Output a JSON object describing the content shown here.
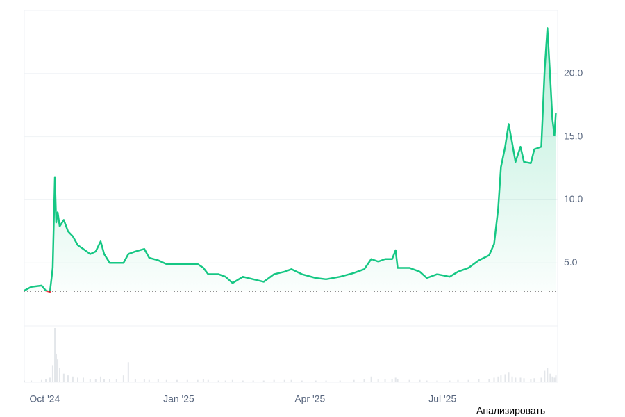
{
  "chart_data": {
    "type": "line",
    "x": [
      0,
      4.8,
      11.9,
      14.8,
      17.6,
      19.5,
      21,
      21.9,
      22.9,
      24.3,
      27.1,
      30,
      33.3,
      36.7,
      40.5,
      45.2,
      49,
      52.4,
      54.8,
      58.6,
      63.3,
      68.1,
      71.4,
      76.2,
      82.4,
      85.7,
      91.9,
      97.6,
      104.8,
      111.9,
      119,
      122.9,
      126.2,
      133.3,
      138.1,
      142.9,
      150,
      157.1,
      164.3,
      171.4,
      178.6,
      183.3,
      190.5,
      200,
      207.1,
      216.7,
      226.2,
      233.3,
      238.1,
      242.9,
      247.6,
      252.4,
      254.8,
      256.2,
      264.3,
      271.4,
      276.2,
      283.3,
      291.9,
      297.6,
      304.8,
      311.9,
      319,
      322.4,
      325.2,
      327.1,
      330,
      332.4,
      334.8,
      337.1,
      340.5,
      342.9,
      347.6,
      350,
      354.8,
      357.1,
      359,
      360.9,
      362.4,
      363.8,
      364.8
    ],
    "series": [
      {
        "color": "#16c784",
        "below_color": "#ea3943",
        "values": [
          2.8,
          3.1,
          3.2,
          2.8,
          2.7,
          4.6,
          11.8,
          8.2,
          9.0,
          7.9,
          8.4,
          7.5,
          7.1,
          6.4,
          6.1,
          5.7,
          5.9,
          6.7,
          5.7,
          5.0,
          5.0,
          5.0,
          5.7,
          5.9,
          6.1,
          5.4,
          5.2,
          4.9,
          4.9,
          4.9,
          4.9,
          4.6,
          4.1,
          4.1,
          3.9,
          3.4,
          3.9,
          3.7,
          3.5,
          4.1,
          4.3,
          4.5,
          4.1,
          3.8,
          3.7,
          3.9,
          4.2,
          4.5,
          5.3,
          5.1,
          5.3,
          5.3,
          6.0,
          4.6,
          4.6,
          4.3,
          3.8,
          4.1,
          3.9,
          4.3,
          4.6,
          5.2,
          5.6,
          6.5,
          9.3,
          12.6,
          14.2,
          16.0,
          14.5,
          13.0,
          14.2,
          13.0,
          12.9,
          14.0,
          14.2,
          20.3,
          23.6,
          19.7,
          16.4,
          15.1,
          16.9
        ]
      }
    ],
    "volume": {
      "color": "#e3e6ea",
      "values": [
        3,
        3,
        4,
        5,
        8,
        30,
        95,
        50,
        40,
        25,
        15,
        12,
        10,
        8,
        8,
        6,
        6,
        10,
        6,
        5,
        5,
        12,
        35,
        6,
        5,
        4,
        5,
        4,
        4,
        4,
        4,
        5,
        4,
        3,
        3,
        4,
        3,
        3,
        3,
        4,
        4,
        4,
        3,
        3,
        3,
        3,
        4,
        5,
        10,
        6,
        6,
        6,
        8,
        5,
        4,
        4,
        3,
        3,
        3,
        4,
        4,
        5,
        6,
        8,
        10,
        12,
        14,
        18,
        10,
        8,
        8,
        7,
        6,
        7,
        8,
        20,
        25,
        15,
        10,
        8,
        12
      ]
    },
    "baseline": 2.75,
    "xlim": [
      0,
      366
    ],
    "xticks": [
      {
        "value": 14,
        "label": "Oct '24"
      },
      {
        "value": 106,
        "label": "Jan '25"
      },
      {
        "value": 196,
        "label": "Apr '25"
      },
      {
        "value": 287,
        "label": "Jul '25"
      }
    ],
    "ylim": [
      0,
      25
    ],
    "yticks": [
      {
        "value": 5,
        "label": "5.0"
      },
      {
        "value": 10,
        "label": "10.0"
      },
      {
        "value": 15,
        "label": "15.0"
      },
      {
        "value": 20,
        "label": "20.0"
      }
    ],
    "grid": true,
    "button_label": "Анализировать"
  }
}
